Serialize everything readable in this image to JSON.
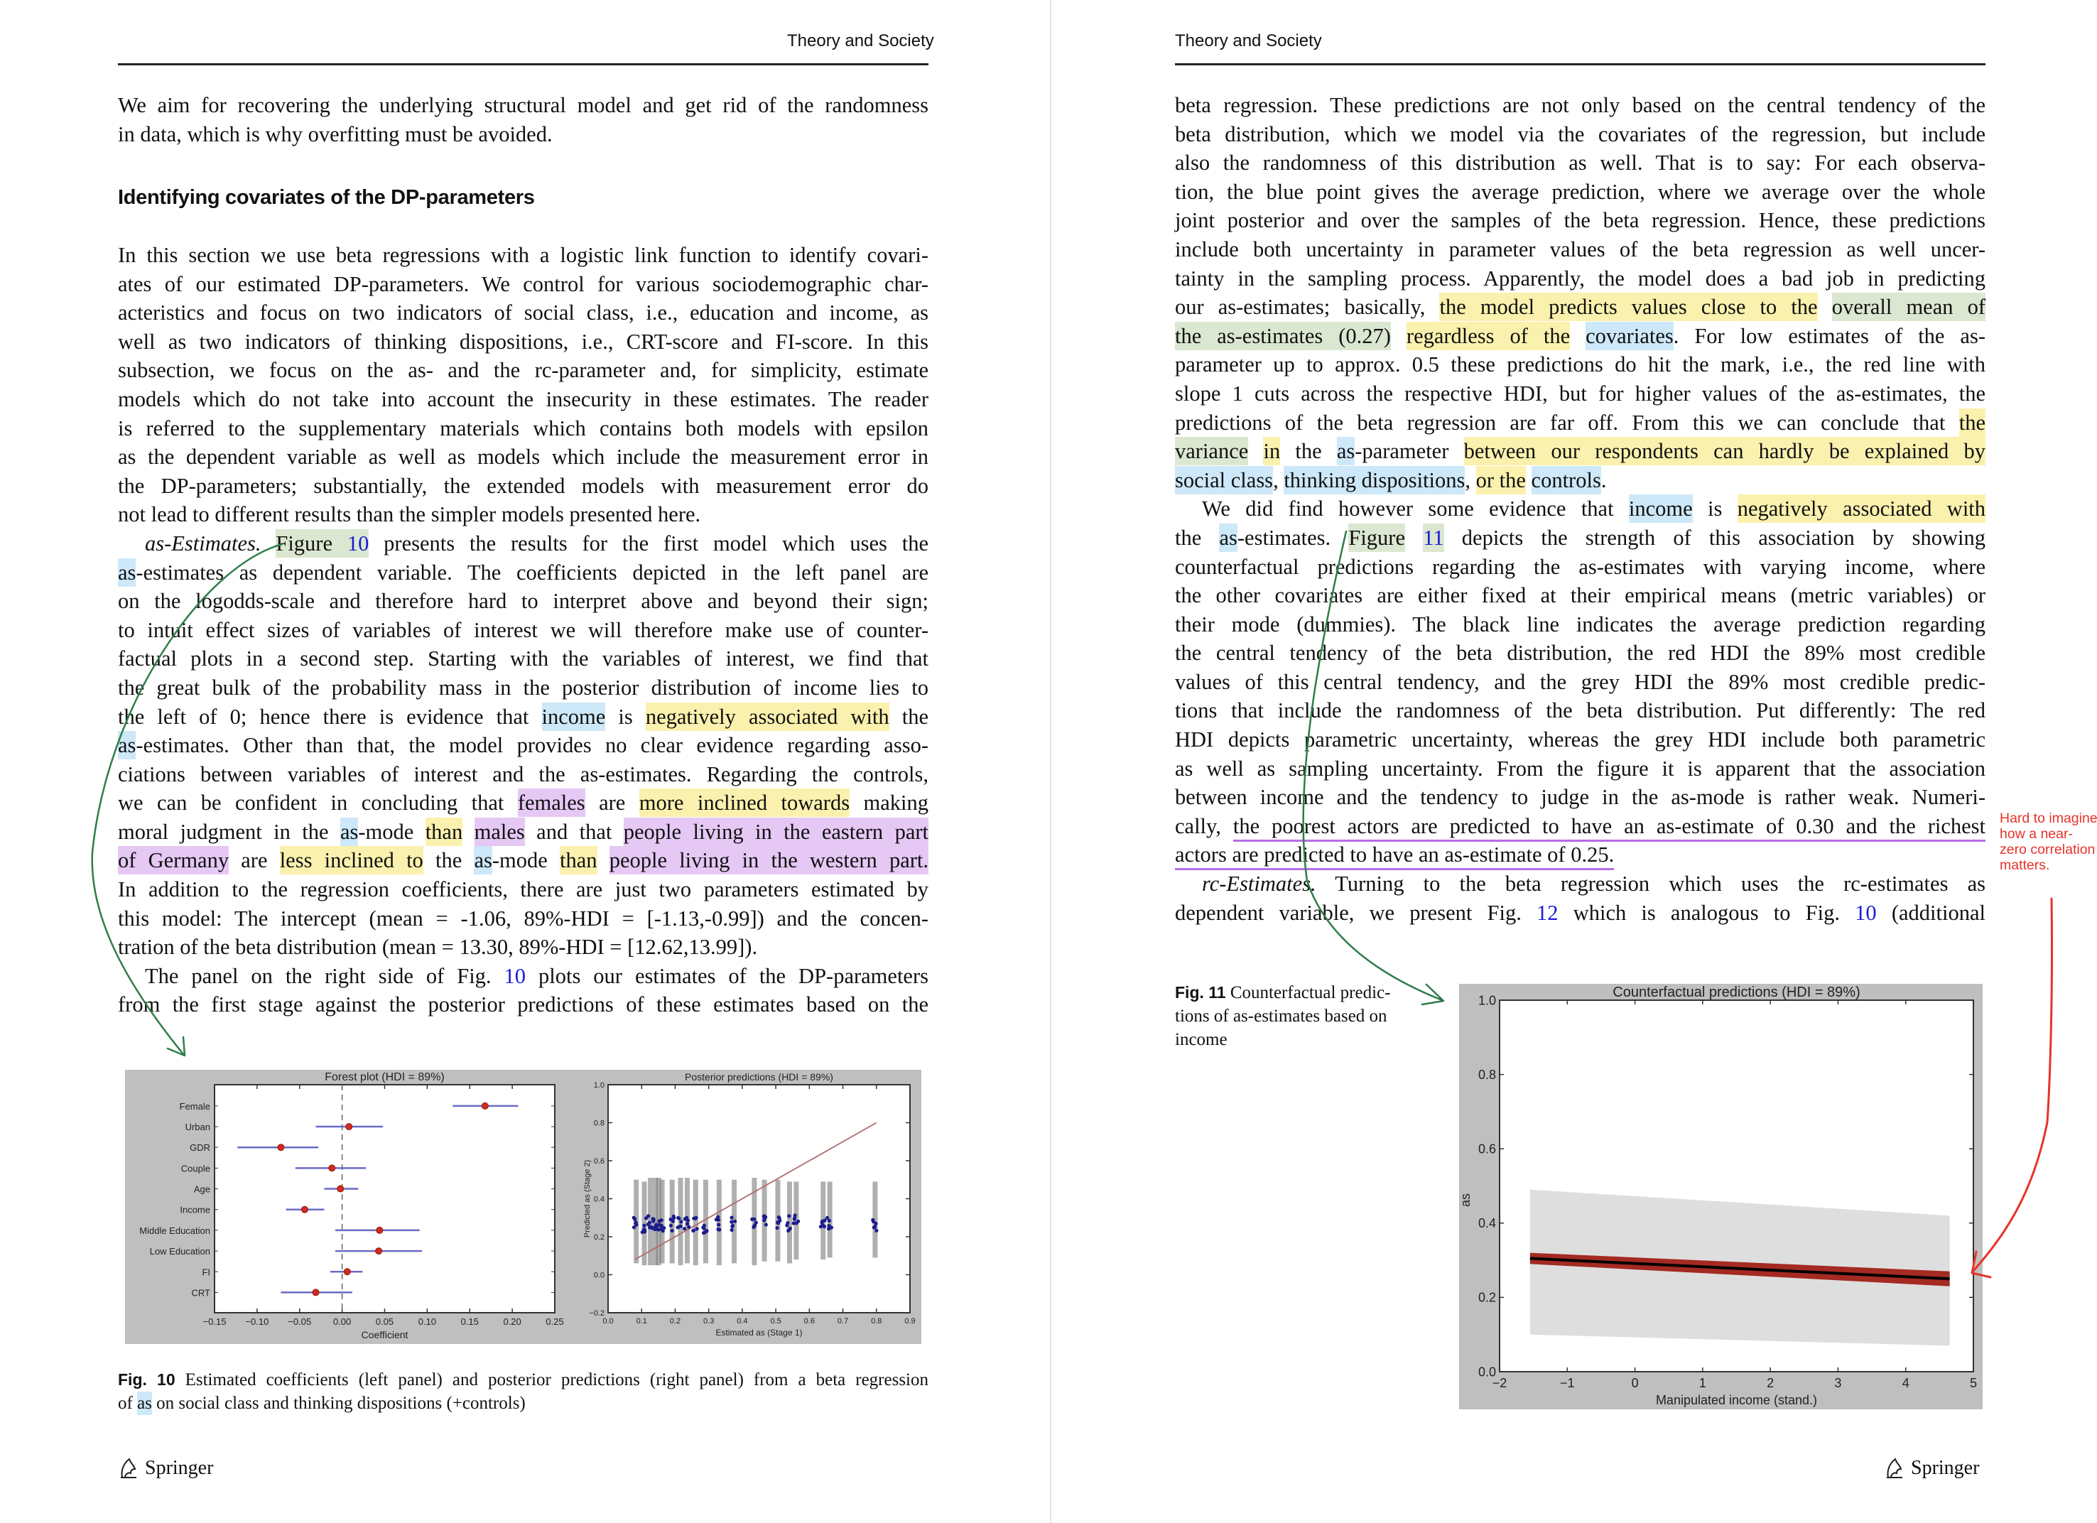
{
  "running_head": "Theory and Society",
  "left_page": {
    "heading": "Identifying covariates of the DP-parameters",
    "top_paragraphs": [
      {
        "indent": false,
        "continues": false,
        "lines": [
          [
            "We aim for recovering the underlying structural model and get rid of the randomness"
          ],
          [
            "in data, which is why overfitting must be avoided."
          ]
        ]
      }
    ],
    "paragraphs": [
      {
        "indent": false,
        "continues": false,
        "lines": [
          [
            "In this section we use beta regressions with a logistic link function to identify covari-"
          ],
          [
            "ates of our estimated DP-parameters. We control for various sociodemographic char-"
          ],
          [
            "acteristics and focus on two indicators of social class, i.e., education and income, as"
          ],
          [
            "well as two indicators of thinking dispositions, i.e., CRT-score and FI-score. In this"
          ],
          [
            "subsection, we focus on the as- and the rc-parameter and, for simplicity, estimate"
          ],
          [
            "models which do not take into account the insecurity in these estimates. The reader"
          ],
          [
            "is referred to the supplementary materials which contains both models with epsilon"
          ],
          [
            "as the dependent variable as well as models which include the measurement error in"
          ],
          [
            "the DP-parameters; substantially, the extended models with measurement error do"
          ],
          [
            "not lead to different results than the simpler models presented here."
          ]
        ]
      },
      {
        "indent": true,
        "continues": false,
        "lines": [
          [
            {
              "t": "as-Estimates.",
              "hl": "italic"
            },
            " ",
            {
              "t": "Figure ",
              "hl": "green"
            },
            {
              "t": "10",
              "hl": "link green"
            },
            " presents the results for the first model which uses the"
          ],
          [
            {
              "t": "as",
              "hl": "blue"
            },
            "-estimates as dependent variable. The coefficients depicted in the left panel are"
          ],
          [
            "on the logodds-scale and therefore hard to interpret above and beyond their sign;"
          ],
          [
            "to intuit effect sizes of variables of interest we will therefore make use of counter-"
          ],
          [
            "factual plots in a second step. Starting with the variables of interest, we find that"
          ],
          [
            "the great bulk of the probability mass in the posterior distribution of income lies to"
          ],
          [
            "the left of 0; hence there is evidence that ",
            {
              "t": "income",
              "hl": "blue"
            },
            " is ",
            {
              "t": "negatively associated with",
              "hl": "yellow"
            },
            " the"
          ],
          [
            {
              "t": "as",
              "hl": "blue"
            },
            "-estimates. Other than that, the model provides no clear evidence regarding asso-"
          ],
          [
            "ciations between variables of interest and the as-estimates. Regarding the controls,"
          ],
          [
            "we can be confident in concluding that ",
            {
              "t": "females",
              "hl": "purple"
            },
            " are ",
            {
              "t": "more inclined towards",
              "hl": "yellow"
            },
            " making"
          ],
          [
            "moral judgment in the ",
            {
              "t": "as",
              "hl": "blue"
            },
            "-mode ",
            {
              "t": "than",
              "hl": "yellow"
            },
            " ",
            {
              "t": "males",
              "hl": "purple"
            },
            " and that ",
            {
              "t": "people living in the eastern part",
              "hl": "purple"
            }
          ],
          [
            {
              "t": "of Germany",
              "hl": "purple"
            },
            " are ",
            {
              "t": "less inclined to",
              "hl": "yellow"
            },
            " the ",
            {
              "t": "as",
              "hl": "blue"
            },
            "-mode ",
            {
              "t": "than",
              "hl": "yellow"
            },
            " ",
            {
              "t": "people living in the western part.",
              "hl": "purple"
            }
          ],
          [
            "In addition to the regression coefficients, there are just two parameters estimated by"
          ],
          [
            "this model: The intercept (mean = -1.06, 89%-HDI = [-1.13,-0.99]) and the concen-"
          ],
          [
            "tration of the beta distribution (mean = 13.30, 89%-HDI = [12.62,13.99])."
          ]
        ]
      },
      {
        "indent": true,
        "continues": true,
        "lines": [
          [
            "The panel on the right side of Fig. ",
            {
              "t": "10",
              "hl": "link"
            },
            " plots our estimates of the DP-parameters"
          ],
          [
            "from the first stage against the posterior predictions of these estimates based on the"
          ]
        ]
      }
    ],
    "figure_caption": {
      "label": "Fig. 10",
      "line1": " Estimated coefficients (left panel) and posterior predictions (right panel) from a beta regression",
      "line2_pre": "of ",
      "line2_hl": "as",
      "line2_post": " on social class and thinking dispositions (+controls)"
    },
    "footer": "Springer"
  },
  "right_page": {
    "paragraphs": [
      {
        "indent": false,
        "continues": false,
        "lines": [
          [
            "beta regression. These predictions are not only based on the central tendency of the"
          ],
          [
            "beta distribution, which we model via the covariates of the regression, but include"
          ],
          [
            "also the randomness of this distribution as well. That is to say: For each observa-"
          ],
          [
            "tion, the blue point gives the average prediction, where we average over the whole"
          ],
          [
            "joint posterior and over the samples of the beta regression. Hence, these predictions"
          ],
          [
            "include both uncertainty in parameter values of the beta regression as well uncer-"
          ],
          [
            "tainty in the sampling process. Apparently, the model does a bad job in predicting"
          ],
          [
            "our as-estimates; basically, ",
            {
              "t": "the model predicts values close to the",
              "hl": "yellow"
            },
            " ",
            {
              "t": "overall mean of",
              "hl": "green"
            }
          ],
          [
            {
              "t": "the as-estimates (0.27)",
              "hl": "green"
            },
            " ",
            {
              "t": "regardless of the",
              "hl": "yellow"
            },
            " ",
            {
              "t": "covariates",
              "hl": "blue"
            },
            ". For low estimates of the as-"
          ],
          [
            "parameter up to approx. 0.5 these predictions do hit the mark, i.e., the red line with"
          ],
          [
            "slope 1 cuts across the respective HDI, but for higher values of the as-estimates, the"
          ],
          [
            "predictions of the beta regression are far off. From this we can conclude that ",
            {
              "t": "the",
              "hl": "yellow"
            }
          ],
          [
            {
              "t": "variance",
              "hl": "green"
            },
            " ",
            {
              "t": "in",
              "hl": "yellow"
            },
            " the ",
            {
              "t": "as",
              "hl": "blue"
            },
            "-parameter ",
            {
              "t": "between our respondents can hardly be explained by",
              "hl": "yellow"
            }
          ],
          [
            {
              "t": "social class",
              "hl": "blue"
            },
            ", ",
            {
              "t": "thinking dispositions",
              "hl": "blue"
            },
            ", ",
            {
              "t": "or the",
              "hl": "yellow"
            },
            " ",
            {
              "t": "controls",
              "hl": "blue"
            },
            "."
          ]
        ]
      },
      {
        "indent": true,
        "continues": false,
        "lines": [
          [
            "We did find however some evidence that ",
            {
              "t": "income",
              "hl": "blue"
            },
            " is ",
            {
              "t": "negatively associated with",
              "hl": "yellow"
            }
          ],
          [
            "the ",
            {
              "t": "as",
              "hl": "blue"
            },
            "-estimates. ",
            {
              "t": "Figure",
              "hl": "green"
            },
            " ",
            {
              "t": "11",
              "hl": "link green"
            },
            " depicts the strength of this association by showing"
          ],
          [
            "counterfactual predictions regarding the as-estimates with varying income, where"
          ],
          [
            "the other covariates are either fixed at their empirical means (metric variables) or"
          ],
          [
            "their mode (dummies). The black line indicates the average prediction regarding"
          ],
          [
            "the central tendency of the beta distribution, the red HDI the 89% most credible"
          ],
          [
            "values of this central tendency, and the grey HDI the 89% most credible predic-"
          ],
          [
            "tions that include the randomness of the beta distribution. Put differently: The red"
          ],
          [
            "HDI depicts parametric uncertainty, whereas the grey HDI include both parametric"
          ],
          [
            "as well as sampling uncertainty. From the figure it is apparent that the association"
          ],
          [
            "between income and the tendency to judge in the as-mode is rather weak. Numeri-"
          ],
          [
            "cally, ",
            {
              "t": "the poorest actors are predicted to have an as-estimate of 0.30 and the richest",
              "hl": "underline"
            }
          ],
          [
            {
              "t": "actors are predicted to have an as-estimate of 0.25.",
              "hl": "underline"
            }
          ]
        ]
      },
      {
        "indent": true,
        "continues": true,
        "lines": [
          [
            {
              "t": "rc-Estimates.",
              "hl": "italic"
            },
            " Turning to the beta regression which uses the rc-estimates as"
          ],
          [
            "dependent variable, we present Fig. ",
            {
              "t": "12",
              "hl": "link"
            },
            " which is analogous to Fig. ",
            {
              "t": "10",
              "hl": "link"
            },
            " (additional"
          ]
        ]
      }
    ],
    "figure_caption": {
      "label": "Fig. 11",
      "lines": [
        " Counterfactual predic-",
        "tions of as-estimates based on",
        "income"
      ]
    },
    "annotation_note": "Hard to imagine how a near-zero correlation matters.",
    "footer": "Springer"
  },
  "colors": {
    "highlight_yellow": "#fbf1ae",
    "highlight_blue": "#cde8f8",
    "highlight_green": "#dbe7d0",
    "highlight_purple": "#e5c8f4",
    "link": "#1a1ad6",
    "annotation_green": "#2e7d4a",
    "annotation_red": "#e8332a",
    "chart_background": "#bfbfbf"
  },
  "chart_data": [
    {
      "type": "scatter",
      "subtype": "forest",
      "title": "Forest plot (HDI = 89%)",
      "xlabel": "Coefficient",
      "ylabel": "",
      "xlim": [
        -0.15,
        0.25
      ],
      "xticks": [
        "−0.15",
        "−0.10",
        "−0.05",
        "0.00",
        "0.05",
        "0.10",
        "0.15",
        "0.20",
        "0.25"
      ],
      "reference_line": 0,
      "categories": [
        "Female",
        "Urban",
        "GDR",
        "Couple",
        "Age",
        "Income",
        "Middle Education",
        "Low Education",
        "FI",
        "CRT"
      ],
      "mean": [
        0.168,
        0.008,
        -0.072,
        -0.012,
        -0.002,
        -0.044,
        0.044,
        0.043,
        0.006,
        -0.031
      ],
      "hdi_low": [
        0.13,
        -0.031,
        -0.123,
        -0.055,
        -0.021,
        -0.066,
        -0.008,
        -0.008,
        -0.014,
        -0.072
      ],
      "hdi_high": [
        0.207,
        0.048,
        -0.028,
        0.028,
        0.019,
        -0.021,
        0.091,
        0.094,
        0.024,
        0.012
      ],
      "point_color": "#d42a1e",
      "interval_color": "#6a6ac8"
    },
    {
      "type": "scatter",
      "title": "Posterior predictions (HDI = 89%)",
      "xlabel": "Estimated as (Stage 1)",
      "ylabel": "Predicted as (Stage 2)",
      "xlim": [
        0.0,
        0.9
      ],
      "ylim": [
        -0.2,
        1.0
      ],
      "xticks": [
        "0.0",
        "0.1",
        "0.2",
        "0.3",
        "0.4",
        "0.5",
        "0.6",
        "0.7",
        "0.8",
        "0.9"
      ],
      "yticks": [
        "−0.2",
        "0.0",
        "0.2",
        "0.4",
        "0.6",
        "0.8",
        "1.0"
      ],
      "x": [
        0.083,
        0.107,
        0.125,
        0.14,
        0.15,
        0.16,
        0.19,
        0.215,
        0.235,
        0.26,
        0.29,
        0.33,
        0.375,
        0.435,
        0.465,
        0.505,
        0.54,
        0.56,
        0.64,
        0.66,
        0.795
      ],
      "mean_prediction": [
        0.27,
        0.26,
        0.27,
        0.26,
        0.27,
        0.26,
        0.27,
        0.26,
        0.27,
        0.27,
        0.26,
        0.27,
        0.27,
        0.26,
        0.27,
        0.28,
        0.27,
        0.28,
        0.28,
        0.28,
        0.27
      ],
      "hdi_low": [
        0.06,
        0.05,
        0.05,
        0.05,
        0.05,
        0.06,
        0.06,
        0.05,
        0.06,
        0.05,
        0.06,
        0.05,
        0.06,
        0.05,
        0.07,
        0.07,
        0.06,
        0.08,
        0.08,
        0.09,
        0.09
      ],
      "hdi_high": [
        0.5,
        0.49,
        0.51,
        0.51,
        0.51,
        0.5,
        0.5,
        0.51,
        0.51,
        0.5,
        0.5,
        0.5,
        0.5,
        0.51,
        0.5,
        0.5,
        0.49,
        0.49,
        0.49,
        0.49,
        0.49
      ],
      "reference_line": {
        "x": [
          0.08,
          0.8
        ],
        "y": [
          0.08,
          0.8
        ],
        "slope": 1
      },
      "point_color": "#1c1c8c",
      "interval_color": "#7a7a7a",
      "line_color": "#b06a6a"
    },
    {
      "type": "area",
      "title": "Counterfactual predictions (HDI = 89%)",
      "xlabel": "Manipulated income (stand.)",
      "ylabel": "as",
      "xlim": [
        -2,
        5
      ],
      "ylim": [
        0.0,
        1.0
      ],
      "xticks": [
        "−2",
        "−1",
        "0",
        "1",
        "2",
        "3",
        "4",
        "5"
      ],
      "yticks": [
        "0.0",
        "0.2",
        "0.4",
        "0.6",
        "0.8",
        "1.0"
      ],
      "x": [
        -1.55,
        4.65
      ],
      "mean": [
        0.305,
        0.25
      ],
      "parametric_hdi_low": [
        0.29,
        0.23
      ],
      "parametric_hdi_high": [
        0.32,
        0.27
      ],
      "predictive_hdi_low": [
        0.1,
        0.07
      ],
      "predictive_hdi_high": [
        0.49,
        0.42
      ],
      "mean_color": "#000000",
      "parametric_color": "#a42a22",
      "predictive_color": "#dedede"
    }
  ]
}
